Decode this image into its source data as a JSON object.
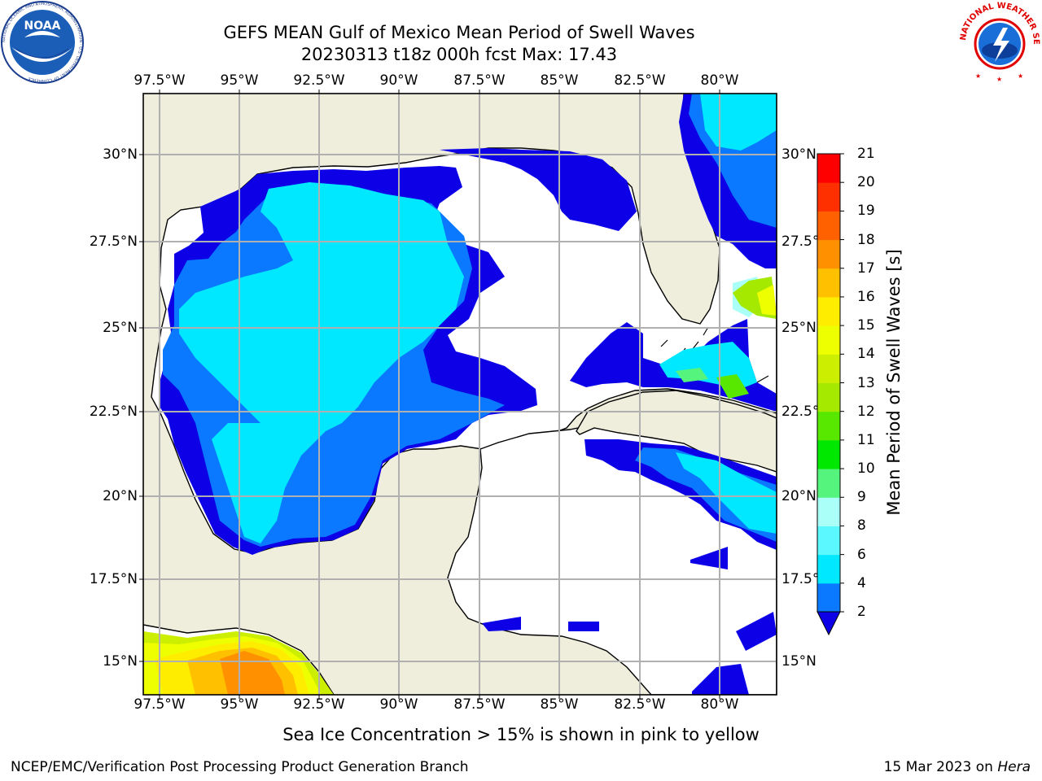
{
  "title": {
    "line1": "GEFS MEAN Gulf of Mexico Mean Period of Swell Waves",
    "line2": "20230313 t18z 000h fcst   Max: 17.43"
  },
  "map": {
    "lon_labels": [
      "97.5°W",
      "95°W",
      "92.5°W",
      "90°W",
      "87.5°W",
      "85°W",
      "82.5°W",
      "80°W"
    ],
    "lat_labels_left": [
      "30°N",
      "27.5°N",
      "25°N",
      "22.5°N",
      "20°N",
      "17.5°N",
      "15°N"
    ],
    "lat_labels_right": [
      "30°N",
      "27.5°N",
      "25°N",
      "22.5°N",
      "20°N",
      "17.5°N",
      "15°N"
    ],
    "land_color": "#efeedc",
    "ocean_fill_color": "#ffffff",
    "grid_color": "#b0b0b0"
  },
  "colorbar": {
    "title": "Mean Period of Swell Waves [s]",
    "ticks": [
      "2",
      "4",
      "6",
      "8",
      "9",
      "10",
      "11",
      "12",
      "13",
      "14",
      "15",
      "16",
      "17",
      "18",
      "19",
      "20",
      "21"
    ],
    "colors": [
      "#0d00e6",
      "#0a78ff",
      "#00e8ff",
      "#5cf8ff",
      "#aafff8",
      "#55f57d",
      "#00e800",
      "#58e800",
      "#a5e800",
      "#ccee00",
      "#eeff00",
      "#ffed00",
      "#ffc000",
      "#ff9000",
      "#ff6000",
      "#ff3000",
      "#ff0000"
    ],
    "extend": "min"
  },
  "note": "Sea Ice Concentration > 15% is shown in pink to yellow",
  "footer": {
    "left": "NCEP/EMC/Verification Post Processing Product Generation Branch",
    "right_prefix": "15 Mar 2023 on ",
    "right_host": "Hera"
  },
  "logos": {
    "left": "noaa-logo",
    "left_text": "NATIONAL OCEANIC AND ATMOSPHERIC ADMINISTRATION · U.S. DEPARTMENT OF COMMERCE",
    "left_label": "NOAA",
    "right": "nws-logo",
    "right_text": "NATIONAL WEATHER SERVICE"
  }
}
